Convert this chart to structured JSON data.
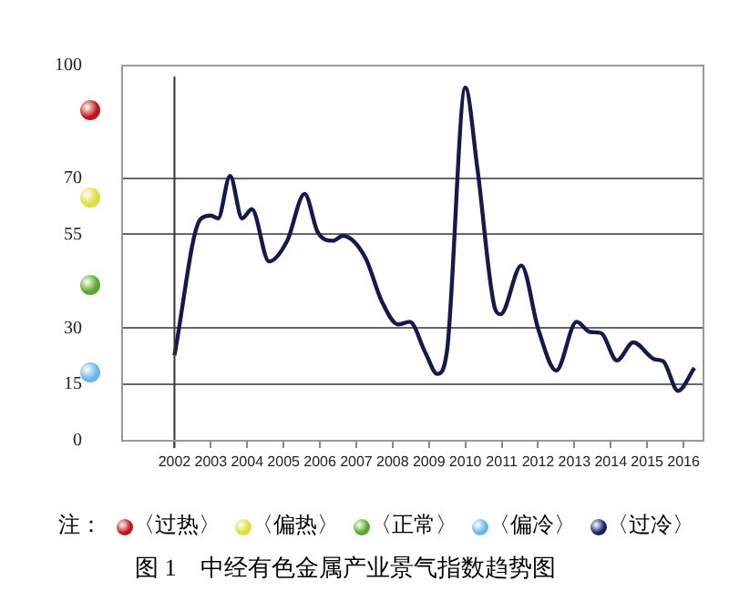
{
  "chart_data": {
    "type": "line",
    "title": "图 1　中经有色金属产业景气指数趋势图",
    "annotations": [
      "注：",
      "〈过热〉",
      "〈偏热〉",
      "〈正常〉",
      "〈偏冷〉",
      "〈过冷〉"
    ],
    "series": [
      {
        "color": "#141a4a",
        "x": [
          2002.0,
          2002.71,
          2003.0,
          2003.2,
          2003.53,
          2003.86,
          2004.13,
          2004.6,
          2005.1,
          2005.58,
          2005.94,
          2006.36,
          2006.63,
          2007.25,
          2007.7,
          2008.15,
          2008.47,
          2008.9,
          2009.23,
          2009.49,
          2010.0,
          2010.33,
          2010.82,
          2010.97,
          2011.54,
          2012.01,
          2012.5,
          2013.06,
          2013.43,
          2013.73,
          2014.17,
          2014.62,
          2015.21,
          2015.44,
          2015.85,
          2016.3
        ],
        "values": [
          22.8,
          59,
          60,
          59.3,
          70.6,
          59.3,
          61.7,
          47.8,
          53.3,
          65.8,
          55.6,
          53.3,
          54.6,
          48.8,
          37.2,
          31,
          31.7,
          23.5,
          17.8,
          23.5,
          94.1,
          72.7,
          35.1,
          33.7,
          46.7,
          29.6,
          18.7,
          31.7,
          29,
          28.7,
          21.4,
          26.2,
          21.7,
          21.2,
          13.3,
          19.4
        ]
      }
    ],
    "xlim": [
      2000.56,
      2016.55
    ],
    "xticks": [
      2002,
      2003,
      2004,
      2005,
      2006,
      2007,
      2008,
      2009,
      2010,
      2011,
      2012,
      2013,
      2014,
      2015,
      2016
    ],
    "ylim": [
      0,
      100
    ],
    "yticks": [
      0,
      15,
      30,
      55,
      70,
      100
    ],
    "ref_lines": [
      {
        "axis": "x",
        "value": 2002,
        "color": "#333333"
      }
    ],
    "grid": "y",
    "legend": false,
    "marker": "none",
    "line_style": "solid"
  }
}
